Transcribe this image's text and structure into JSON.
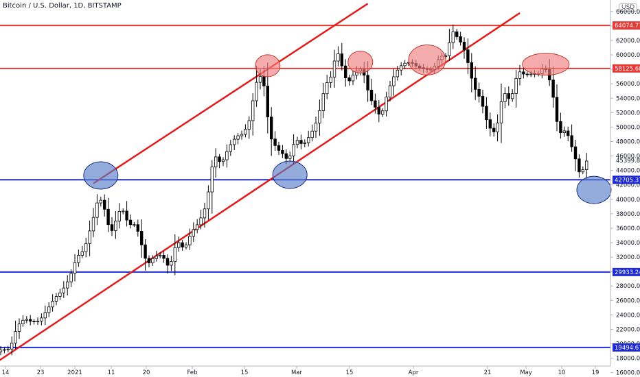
{
  "chart_data": {
    "type": "candlestick",
    "title": "Bitcoin / U.S. Dollar, 1D, BITSTAMP",
    "currency": "USD",
    "x_ticks": [
      "14",
      "23",
      "2021",
      "11",
      "20",
      "Feb",
      "15",
      "Mar",
      "15",
      "Apr",
      "21",
      "May",
      "10",
      "19"
    ],
    "y_ticks": [
      16000,
      18000,
      20000,
      22000,
      24000,
      26000,
      28000,
      30000,
      32000,
      34000,
      36000,
      38000,
      40000,
      42000,
      44000,
      46000,
      48000,
      50000,
      52000,
      54000,
      56000,
      58000,
      60000,
      62000,
      64000,
      66000
    ],
    "ylim": [
      15400,
      67600
    ],
    "grid": false,
    "last_price_label": "45399.87",
    "levels": [
      {
        "label": "64074.77",
        "value": 64074.77,
        "color": "#e53935"
      },
      {
        "label": "58125.68",
        "value": 58125.68,
        "color": "#e53935"
      },
      {
        "label": "42705.37",
        "value": 42705.37,
        "color": "#1e2bd6"
      },
      {
        "label": "29933.24",
        "value": 29933.24,
        "color": "#1e2bd6"
      },
      {
        "label": "19494.67",
        "value": 19494.67,
        "color": "#1e2bd6"
      }
    ],
    "channel_lines": [
      {
        "from": [
          "2021-01-06",
          42200
        ],
        "to": [
          "2021-03-21",
          67100
        ]
      },
      {
        "from": [
          "2020-12-09",
          16800
        ],
        "to": [
          "2021-05-01",
          65800
        ]
      }
    ],
    "highlight_ellipses": [
      {
        "center": [
          "2021-02-22",
          58500
        ],
        "kind": "resistance",
        "color": "#f08080"
      },
      {
        "center": [
          "2021-03-19",
          59000
        ],
        "kind": "resistance",
        "color": "#f08080"
      },
      {
        "center": [
          "2021-04-06",
          59300
        ],
        "kind": "resistance",
        "color": "#f08080"
      },
      {
        "center": [
          "2021-05-08",
          58700
        ],
        "kind": "resistance",
        "color": "#f08080"
      },
      {
        "center": [
          "2021-01-08",
          43300
        ],
        "kind": "support",
        "color": "#5b7fc7"
      },
      {
        "center": [
          "2021-02-28",
          43400
        ],
        "kind": "support",
        "color": "#5b7fc7"
      },
      {
        "center": [
          "2021-05-21",
          41300
        ],
        "kind": "support",
        "color": "#5b7fc7"
      }
    ],
    "price_path": [
      [
        "2020-12-10",
        18300
      ],
      [
        "2020-12-12",
        19100
      ],
      [
        "2020-12-15",
        19300
      ],
      [
        "2020-12-17",
        22500
      ],
      [
        "2020-12-19",
        23500
      ],
      [
        "2020-12-21",
        23000
      ],
      [
        "2020-12-23",
        23200
      ],
      [
        "2020-12-25",
        24700
      ],
      [
        "2020-12-27",
        26300
      ],
      [
        "2020-12-29",
        27300
      ],
      [
        "2020-12-31",
        29000
      ],
      [
        "2021-01-02",
        32000
      ],
      [
        "2021-01-04",
        33000
      ],
      [
        "2021-01-06",
        36500
      ],
      [
        "2021-01-08",
        40500
      ],
      [
        "2021-01-10",
        38000
      ],
      [
        "2021-01-11",
        35000
      ],
      [
        "2021-01-14",
        39000
      ],
      [
        "2021-01-16",
        36500
      ],
      [
        "2021-01-18",
        36500
      ],
      [
        "2021-01-21",
        30900
      ],
      [
        "2021-01-23",
        32100
      ],
      [
        "2021-01-25",
        32300
      ],
      [
        "2021-01-27",
        30400
      ],
      [
        "2021-01-29",
        34300
      ],
      [
        "2021-01-31",
        33100
      ],
      [
        "2021-02-02",
        35500
      ],
      [
        "2021-02-04",
        36800
      ],
      [
        "2021-02-06",
        39300
      ],
      [
        "2021-02-08",
        46200
      ],
      [
        "2021-02-10",
        44900
      ],
      [
        "2021-02-12",
        47200
      ],
      [
        "2021-02-14",
        48700
      ],
      [
        "2021-02-16",
        49100
      ],
      [
        "2021-02-18",
        51500
      ],
      [
        "2021-02-19",
        55800
      ],
      [
        "2021-02-21",
        57400
      ],
      [
        "2021-02-22",
        54000
      ],
      [
        "2021-02-23",
        48800
      ],
      [
        "2021-02-25",
        47000
      ],
      [
        "2021-02-27",
        46100
      ],
      [
        "2021-02-28",
        45200
      ],
      [
        "2021-03-02",
        48400
      ],
      [
        "2021-03-04",
        47500
      ],
      [
        "2021-03-06",
        48900
      ],
      [
        "2021-03-08",
        51100
      ],
      [
        "2021-03-10",
        55800
      ],
      [
        "2021-03-12",
        57300
      ],
      [
        "2021-03-13",
        61000
      ],
      [
        "2021-03-14",
        59300
      ],
      [
        "2021-03-16",
        56000
      ],
      [
        "2021-03-18",
        57600
      ],
      [
        "2021-03-20",
        58200
      ],
      [
        "2021-03-22",
        54100
      ],
      [
        "2021-03-24",
        52300
      ],
      [
        "2021-03-25",
        51300
      ],
      [
        "2021-03-27",
        55100
      ],
      [
        "2021-03-29",
        57600
      ],
      [
        "2021-03-31",
        58800
      ],
      [
        "2021-04-02",
        59000
      ],
      [
        "2021-04-04",
        58300
      ],
      [
        "2021-04-06",
        58000
      ],
      [
        "2021-04-08",
        58000
      ],
      [
        "2021-04-10",
        59800
      ],
      [
        "2021-04-12",
        59900
      ],
      [
        "2021-04-13",
        63500
      ],
      [
        "2021-04-14",
        62900
      ],
      [
        "2021-04-16",
        61400
      ],
      [
        "2021-04-17",
        60000
      ],
      [
        "2021-04-19",
        55700
      ],
      [
        "2021-04-21",
        53800
      ],
      [
        "2021-04-23",
        50100
      ],
      [
        "2021-04-25",
        49100
      ],
      [
        "2021-04-27",
        55000
      ],
      [
        "2021-04-29",
        53600
      ],
      [
        "2021-05-01",
        57800
      ],
      [
        "2021-05-03",
        57200
      ],
      [
        "2021-05-05",
        57400
      ],
      [
        "2021-05-07",
        57400
      ],
      [
        "2021-05-08",
        58700
      ],
      [
        "2021-05-10",
        55800
      ],
      [
        "2021-05-12",
        49100
      ],
      [
        "2021-05-14",
        49600
      ],
      [
        "2021-05-16",
        46500
      ],
      [
        "2021-05-18",
        42900
      ],
      [
        "2021-05-19",
        45300
      ]
    ]
  }
}
